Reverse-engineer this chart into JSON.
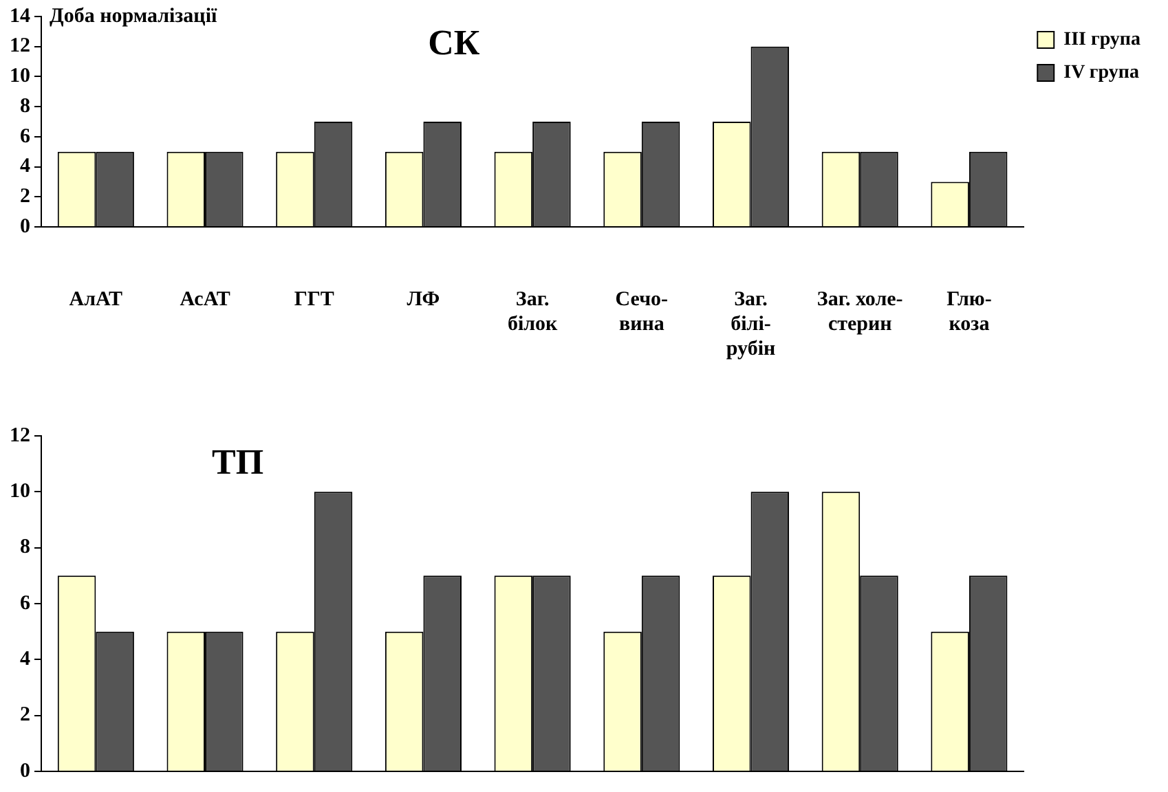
{
  "chart_data": [
    {
      "type": "bar",
      "title": "СК",
      "ylabel": "Доба нормалізації",
      "categories": [
        "АлАТ",
        "АсАТ",
        "ГГТ",
        "ЛФ",
        "Заг.\nбілок",
        "Сечо-\nвина",
        "Заг.\nбілі-\nрубін",
        "Заг. холе-\nстерин",
        "Глю-\nкоза"
      ],
      "series": [
        {
          "name": "III група",
          "color": "#ffffcc",
          "values": [
            5,
            5,
            5,
            5,
            5,
            5,
            7,
            5,
            3
          ]
        },
        {
          "name": "IV група",
          "color": "#555555",
          "values": [
            5,
            5,
            7,
            7,
            7,
            7,
            12,
            5,
            5
          ]
        }
      ],
      "ylim": [
        0,
        14
      ],
      "yticks": [
        0,
        2,
        4,
        6,
        8,
        10,
        12,
        14
      ],
      "grid": false,
      "legend": "top right"
    },
    {
      "type": "bar",
      "title": "ТП",
      "categories": [
        null,
        null,
        null,
        null,
        null,
        null,
        null,
        null,
        null
      ],
      "series": [
        {
          "color": "#ffffcc",
          "values": [
            7,
            5,
            5,
            5,
            7,
            5,
            7,
            10,
            5
          ]
        },
        {
          "color": "#555555",
          "values": [
            5,
            5,
            10,
            7,
            7,
            7,
            10,
            7,
            7
          ]
        }
      ],
      "ylim": [
        0,
        12
      ],
      "yticks": [
        0,
        2,
        4,
        6,
        8,
        10,
        12
      ],
      "grid": false,
      "tick_labels": "y"
    }
  ]
}
